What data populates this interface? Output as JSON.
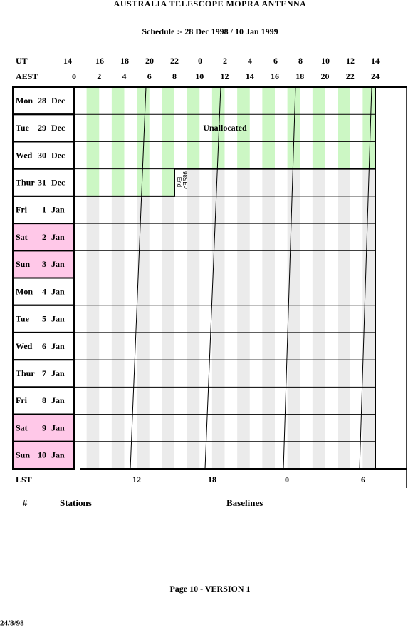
{
  "header": {
    "title": "AUSTRALIA TELESCOPE MOPRA ANTENNA",
    "subtitle": "Schedule :- 28 Dec 1998 / 10 Jan 1999"
  },
  "ut": {
    "label": "UT",
    "hours": [
      14,
      16,
      18,
      20,
      22,
      0,
      2,
      4,
      6,
      8,
      10,
      12,
      14
    ]
  },
  "aest": {
    "label": "AEST",
    "hours": [
      0,
      2,
      4,
      6,
      8,
      10,
      12,
      14,
      16,
      18,
      20,
      22,
      24
    ]
  },
  "rows": [
    {
      "day": "Mon",
      "date": "28",
      "month": "Dec"
    },
    {
      "day": "Tue",
      "date": "29",
      "month": "Dec"
    },
    {
      "day": "Wed",
      "date": "30",
      "month": "Dec"
    },
    {
      "day": "Thur",
      "date": "31",
      "month": "Dec"
    },
    {
      "day": "Fri",
      "date": "1",
      "month": "Jan"
    },
    {
      "day": "Sat",
      "date": "2",
      "month": "Jan"
    },
    {
      "day": "Sun",
      "date": "3",
      "month": "Jan"
    },
    {
      "day": "Mon",
      "date": "4",
      "month": "Jan"
    },
    {
      "day": "Tue",
      "date": "5",
      "month": "Jan"
    },
    {
      "day": "Wed",
      "date": "6",
      "month": "Jan"
    },
    {
      "day": "Thur",
      "date": "7",
      "month": "Jan"
    },
    {
      "day": "Fri",
      "date": "8",
      "month": "Jan"
    },
    {
      "day": "Sat",
      "date": "9",
      "month": "Jan"
    },
    {
      "day": "Sun",
      "date": "10",
      "month": "Jan"
    }
  ],
  "annotations": {
    "unallocated": "Unallocated",
    "end_line1": "End",
    "end_line2": "98SEPT"
  },
  "lst": {
    "label": "LST",
    "hours": [
      12,
      18,
      0,
      6
    ]
  },
  "footer": {
    "columns": [
      "#",
      "Stations",
      "Baselines"
    ],
    "page": "Page 10 - VERSION 1",
    "date": "24/8/98"
  }
}
